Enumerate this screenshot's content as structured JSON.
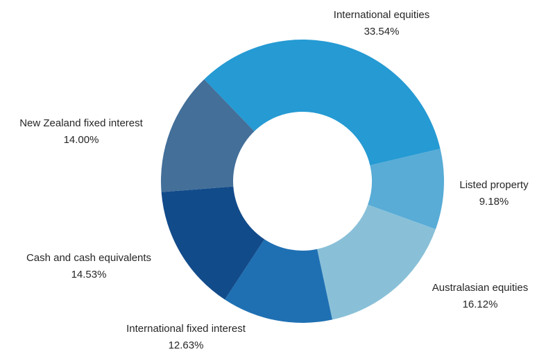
{
  "chart_data": {
    "type": "donut",
    "categories": [
      "International equities",
      "Listed property",
      "Australasian equities",
      "International fixed interest",
      "Cash and cash equivalents",
      "New Zealand fixed interest"
    ],
    "values": [
      33.54,
      9.18,
      16.12,
      12.63,
      14.53,
      14.0
    ],
    "value_labels": [
      "33.54%",
      "9.18%",
      "16.12%",
      "12.63%",
      "14.53%",
      "14.00%"
    ],
    "colors": [
      "#259ad3",
      "#58acd6",
      "#89c0d8",
      "#1f70b3",
      "#124b8a",
      "#436f99"
    ]
  }
}
